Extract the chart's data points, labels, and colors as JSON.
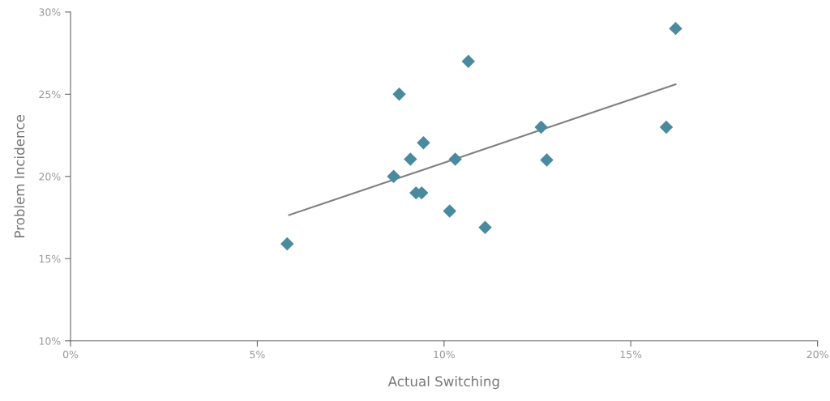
{
  "chart_data": {
    "type": "scatter",
    "xlabel": "Actual Switching",
    "ylabel": "Problem Incidence",
    "xlim": [
      0,
      20
    ],
    "ylim": [
      10,
      30
    ],
    "xticks": [
      {
        "value": 0,
        "label": "0%"
      },
      {
        "value": 5,
        "label": "5%"
      },
      {
        "value": 10,
        "label": "10%"
      },
      {
        "value": 15,
        "label": "15%"
      },
      {
        "value": 20,
        "label": "20%"
      }
    ],
    "yticks": [
      {
        "value": 10,
        "label": "10%"
      },
      {
        "value": 15,
        "label": "15%"
      },
      {
        "value": 20,
        "label": "20%"
      },
      {
        "value": 25,
        "label": "25%"
      },
      {
        "value": 30,
        "label": "30%"
      }
    ],
    "grid": false,
    "series": [
      {
        "marker": "diamond",
        "color": "#4a8a9e",
        "x": [
          5.8,
          8.65,
          8.8,
          9.1,
          9.25,
          9.4,
          9.45,
          10.15,
          10.3,
          10.65,
          11.1,
          12.6,
          12.75,
          15.95,
          16.2
        ],
        "values": [
          15.9,
          20,
          25,
          21.05,
          19,
          19,
          22.05,
          17.9,
          21.05,
          27,
          16.9,
          23,
          21,
          23,
          29
        ]
      },
      {
        "type": "line",
        "color": "#808080",
        "x": [
          5.85,
          16.2
        ],
        "values": [
          17.65,
          25.6
        ]
      }
    ]
  }
}
